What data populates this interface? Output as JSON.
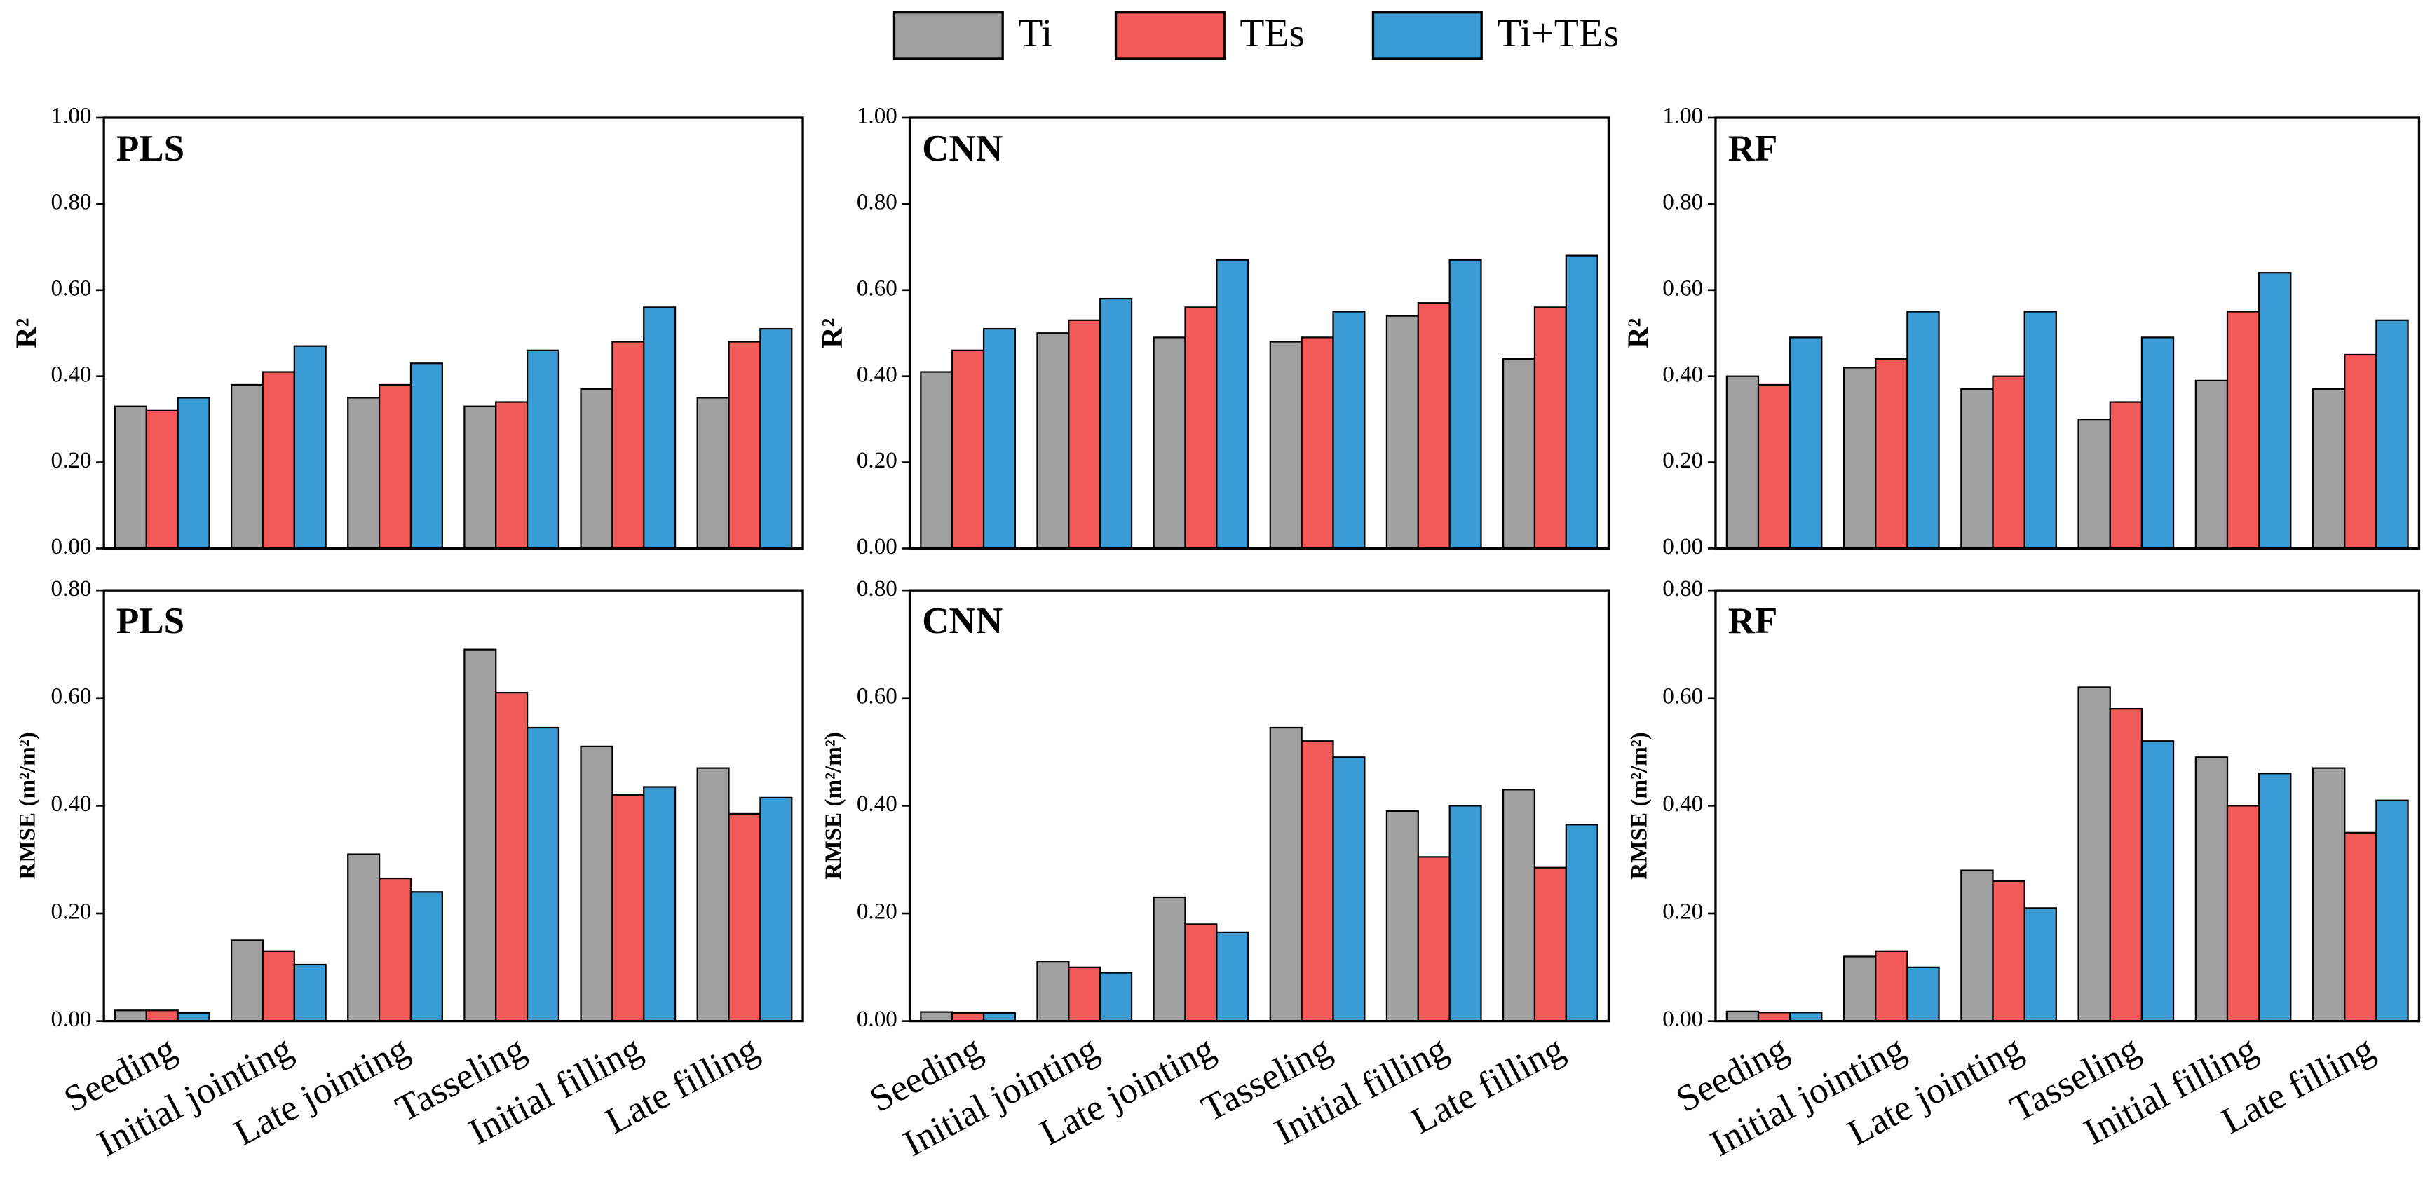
{
  "chart_data": [
    {
      "type": "bar",
      "title": "PLS",
      "y_label": "R²",
      "ylim": [
        0,
        1
      ],
      "yticks": [
        {
          "value": 0,
          "label": "0.00"
        },
        {
          "value": 0.2,
          "label": "0.20"
        },
        {
          "value": 0.4,
          "label": "0.40"
        },
        {
          "value": 0.6,
          "label": "0.60"
        },
        {
          "value": 0.8,
          "label": "0.80"
        },
        {
          "value": 1,
          "label": "1.00"
        }
      ],
      "legend": "top",
      "series": [
        {
          "name": "Ti",
          "color": "#a0a0a0",
          "values": [
            0.33,
            0.38,
            0.35,
            0.33,
            0.37,
            0.35
          ]
        },
        {
          "name": "TEs",
          "color": "#f25a5a",
          "values": [
            0.32,
            0.41,
            0.38,
            0.34,
            0.48,
            0.48
          ]
        },
        {
          "name": "Ti+TEs",
          "color": "#3a9ad4",
          "values": [
            0.35,
            0.47,
            0.43,
            0.46,
            0.56,
            0.51
          ]
        }
      ]
    },
    {
      "type": "bar",
      "title": "CNN",
      "y_label": "R²",
      "ylim": [
        0,
        1
      ],
      "yticks": [
        {
          "value": 0,
          "label": "0.00"
        },
        {
          "value": 0.2,
          "label": "0.20"
        },
        {
          "value": 0.4,
          "label": "0.40"
        },
        {
          "value": 0.6,
          "label": "0.60"
        },
        {
          "value": 0.8,
          "label": "0.80"
        },
        {
          "value": 1,
          "label": "1.00"
        }
      ],
      "series": [
        {
          "name": "Ti",
          "color": "#a0a0a0",
          "values": [
            0.41,
            0.5,
            0.49,
            0.48,
            0.54,
            0.44
          ]
        },
        {
          "name": "TEs",
          "color": "#f25a5a",
          "values": [
            0.46,
            0.53,
            0.56,
            0.49,
            0.57,
            0.56
          ]
        },
        {
          "name": "Ti+TEs",
          "color": "#3a9ad4",
          "values": [
            0.51,
            0.58,
            0.67,
            0.55,
            0.67,
            0.68
          ]
        }
      ]
    },
    {
      "type": "bar",
      "title": "RF",
      "y_label": "R²",
      "ylim": [
        0,
        1
      ],
      "yticks": [
        {
          "value": 0,
          "label": "0.00"
        },
        {
          "value": 0.2,
          "label": "0.20"
        },
        {
          "value": 0.4,
          "label": "0.40"
        },
        {
          "value": 0.6,
          "label": "0.60"
        },
        {
          "value": 0.8,
          "label": "0.80"
        },
        {
          "value": 1,
          "label": "1.00"
        }
      ],
      "series": [
        {
          "name": "Ti",
          "color": "#a0a0a0",
          "values": [
            0.4,
            0.42,
            0.37,
            0.3,
            0.39,
            0.37
          ]
        },
        {
          "name": "TEs",
          "color": "#f25a5a",
          "values": [
            0.38,
            0.44,
            0.4,
            0.34,
            0.55,
            0.45
          ]
        },
        {
          "name": "Ti+TEs",
          "color": "#3a9ad4",
          "values": [
            0.49,
            0.55,
            0.55,
            0.49,
            0.64,
            0.53
          ]
        }
      ]
    },
    {
      "type": "bar",
      "title": "PLS",
      "y_label": "RMSE (m²/m²)",
      "ylim": [
        0,
        0.8
      ],
      "yticks": [
        {
          "value": 0,
          "label": "0.00"
        },
        {
          "value": 0.2,
          "label": "0.20"
        },
        {
          "value": 0.4,
          "label": "0.40"
        },
        {
          "value": 0.6,
          "label": "0.60"
        },
        {
          "value": 0.8,
          "label": "0.80"
        }
      ],
      "categories": [
        "Seeding",
        "Initial jointing",
        "Late jointing",
        "Tasseling",
        "Initial filling",
        "Late filling"
      ],
      "series": [
        {
          "name": "Ti",
          "color": "#a0a0a0",
          "values": [
            0.02,
            0.15,
            0.31,
            0.69,
            0.51,
            0.47
          ]
        },
        {
          "name": "TEs",
          "color": "#f25a5a",
          "values": [
            0.02,
            0.13,
            0.265,
            0.61,
            0.42,
            0.385
          ]
        },
        {
          "name": "Ti+TEs",
          "color": "#3a9ad4",
          "values": [
            0.015,
            0.105,
            0.24,
            0.545,
            0.435,
            0.415
          ]
        }
      ]
    },
    {
      "type": "bar",
      "title": "CNN",
      "y_label": "RMSE (m²/m²)",
      "ylim": [
        0,
        0.8
      ],
      "yticks": [
        {
          "value": 0,
          "label": "0.00"
        },
        {
          "value": 0.2,
          "label": "0.20"
        },
        {
          "value": 0.4,
          "label": "0.40"
        },
        {
          "value": 0.6,
          "label": "0.60"
        },
        {
          "value": 0.8,
          "label": "0.80"
        }
      ],
      "categories": [
        "Seeding",
        "Initial jointing",
        "Late jointing",
        "Tasseling",
        "Initial filling",
        "Late filling"
      ],
      "series": [
        {
          "name": "Ti",
          "color": "#a0a0a0",
          "values": [
            0.017,
            0.11,
            0.23,
            0.545,
            0.39,
            0.43
          ]
        },
        {
          "name": "TEs",
          "color": "#f25a5a",
          "values": [
            0.015,
            0.1,
            0.18,
            0.52,
            0.305,
            0.285
          ]
        },
        {
          "name": "Ti+TEs",
          "color": "#3a9ad4",
          "values": [
            0.015,
            0.09,
            0.165,
            0.49,
            0.4,
            0.365
          ]
        }
      ]
    },
    {
      "type": "bar",
      "title": "RF",
      "y_label": "RMSE (m²/m²)",
      "ylim": [
        0,
        0.8
      ],
      "yticks": [
        {
          "value": 0,
          "label": "0.00"
        },
        {
          "value": 0.2,
          "label": "0.20"
        },
        {
          "value": 0.4,
          "label": "0.40"
        },
        {
          "value": 0.6,
          "label": "0.60"
        },
        {
          "value": 0.8,
          "label": "0.80"
        }
      ],
      "categories": [
        "Seeding",
        "Initial jointing",
        "Late jointing",
        "Tasseling",
        "Initial filling",
        "Late filling"
      ],
      "series": [
        {
          "name": "Ti",
          "color": "#a0a0a0",
          "values": [
            0.018,
            0.12,
            0.28,
            0.62,
            0.49,
            0.47
          ]
        },
        {
          "name": "TEs",
          "color": "#f25a5a",
          "values": [
            0.016,
            0.13,
            0.26,
            0.58,
            0.4,
            0.35
          ]
        },
        {
          "name": "Ti+TEs",
          "color": "#3a9ad4",
          "values": [
            0.016,
            0.1,
            0.21,
            0.52,
            0.46,
            0.41
          ]
        }
      ]
    }
  ]
}
